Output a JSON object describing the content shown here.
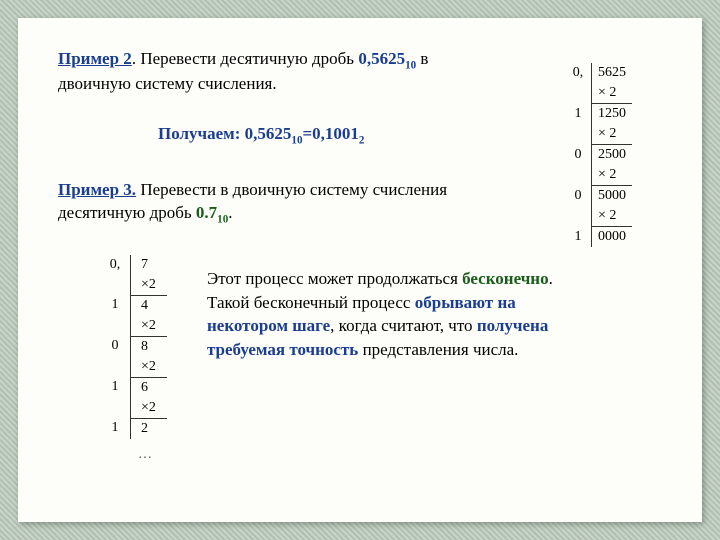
{
  "ex2": {
    "label": "Пример 2",
    "text_before": ". Перевести  десятичную  дробь ",
    "fraction": "0,5625",
    "fraction_sub": "10",
    "text_after": " в двоичную систему счисления."
  },
  "result": {
    "prefix": "Получаем: ",
    "lhs": "0,5625",
    "lhs_sub": "10",
    "eq": "=",
    "rhs": "0,1001",
    "rhs_sub": "2"
  },
  "calc1": {
    "rows": [
      {
        "bit": "0,",
        "val": "5625",
        "mult": "×   2",
        "sep": true
      },
      {
        "bit": "1",
        "val": "1250",
        "mult": "×   2",
        "sep": true
      },
      {
        "bit": "0",
        "val": "2500",
        "mult": "×    2",
        "sep": true
      },
      {
        "bit": "0",
        "val": "5000",
        "mult": "×    2",
        "sep": true
      },
      {
        "bit": "1",
        "val": "0000",
        "mult": "",
        "sep": false
      }
    ]
  },
  "ex3": {
    "label": "Пример 3.",
    "text_before": " Перевести в двоичную систему счисления десятичную дробь ",
    "fraction": "0.7",
    "fraction_sub": "10",
    "period": "."
  },
  "calc2": {
    "rows": [
      {
        "bit": "0,",
        "val": "7",
        "mult": "×2",
        "sep": true
      },
      {
        "bit": "1",
        "val": "4",
        "mult": "×2",
        "sep": true
      },
      {
        "bit": "0",
        "val": "8",
        "mult": "×2",
        "sep": true
      },
      {
        "bit": "1",
        "val": "6",
        "mult": "×2",
        "sep": true
      },
      {
        "bit": "1",
        "val": "2",
        "mult": "",
        "sep": false
      }
    ],
    "dots": "…"
  },
  "body": {
    "t1": "Этот процесс может продолжаться ",
    "hl1": "бесконечно",
    "t2": ". Такой бесконечный процесс ",
    "hl2": "обрывают на некотором шаге",
    "t3": ", когда считают, что ",
    "hl3": "получена требуемая точность",
    "t4": " представления числа."
  }
}
